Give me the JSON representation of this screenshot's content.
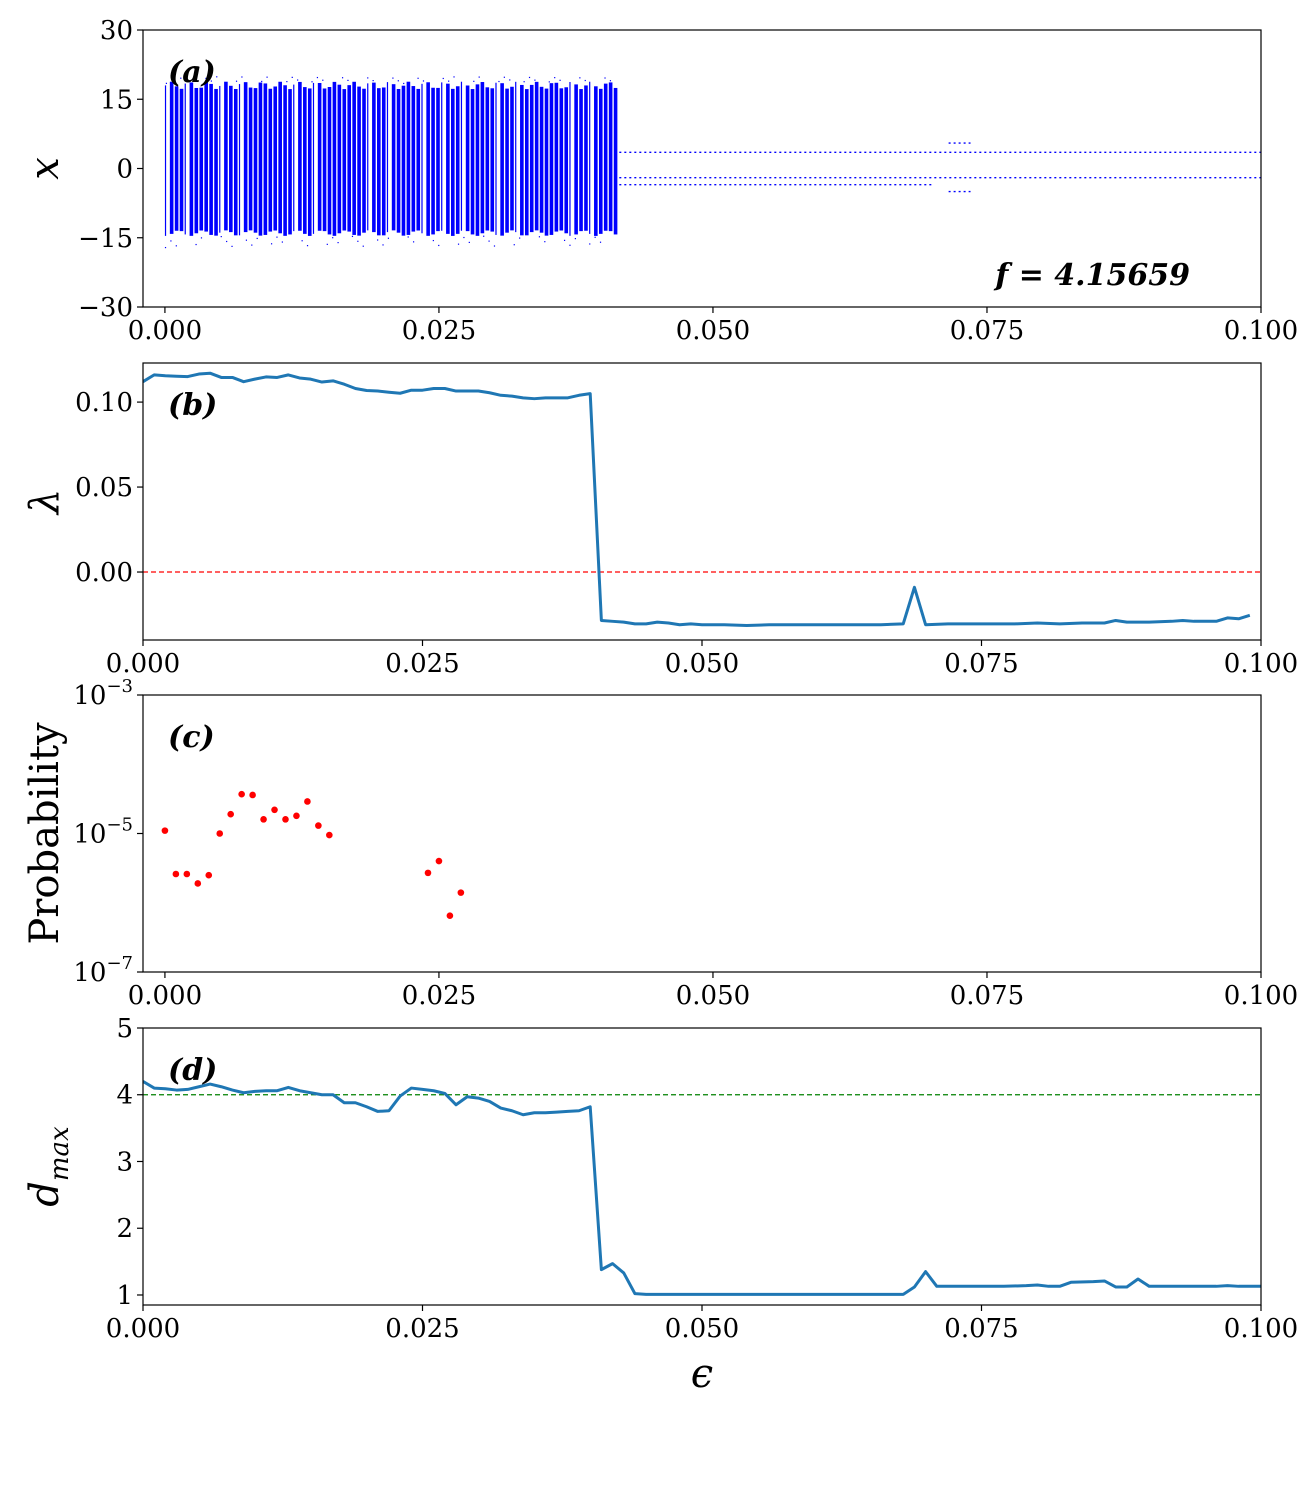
{
  "colors": {
    "scatter": "#0000ff",
    "line": "#1f77b4",
    "zero_ref": "#ff0000",
    "prob_points": "#ff0000",
    "dmax_ref": "#008000"
  },
  "chart_data": [
    {
      "id": "a",
      "type": "scatter",
      "panel_label": "(a)",
      "annotation": "f = 4.15659",
      "ylabel": "x",
      "xlim": [
        -0.002,
        0.1
      ],
      "ylim": [
        -30,
        30
      ],
      "xticks": [
        "0.000",
        "0.025",
        "0.050",
        "0.075",
        "0.100"
      ],
      "xtick_values": [
        0,
        0.025,
        0.05,
        0.075,
        0.1
      ],
      "yticks": [
        "−30",
        "−15",
        "0",
        "15",
        "30"
      ],
      "ytick_values": [
        -30,
        -15,
        0,
        15,
        30
      ],
      "chaotic_band": {
        "x_range": [
          0.0,
          0.041
        ],
        "y_range": [
          -14,
          18
        ],
        "outliers_y": [
          -17,
          20
        ]
      },
      "periodic_branches": [
        {
          "x_range": [
            0.041,
            0.1
          ],
          "y": 3.5
        },
        {
          "x_range": [
            0.041,
            0.1
          ],
          "y": -2.0
        },
        {
          "x_range": [
            0.041,
            0.07
          ],
          "y": -3.5
        },
        {
          "x_range": [
            0.0715,
            0.0735
          ],
          "y": 5.5
        },
        {
          "x_range": [
            0.0715,
            0.0735
          ],
          "y": -5.0
        }
      ]
    },
    {
      "id": "b",
      "type": "line",
      "panel_label": "(b)",
      "ylabel": "λ",
      "xlim": [
        0,
        0.1
      ],
      "ylim": [
        -0.04,
        0.123
      ],
      "xticks": [
        "0.000",
        "0.025",
        "0.050",
        "0.075",
        "0.100"
      ],
      "xtick_values": [
        0,
        0.025,
        0.05,
        0.075,
        0.1
      ],
      "yticks": [
        "0.00",
        "0.05",
        "0.10"
      ],
      "ytick_values": [
        0,
        0.05,
        0.1
      ],
      "reference_line": 0.0,
      "x": [
        0.0,
        0.001,
        0.002,
        0.003,
        0.004,
        0.005,
        0.006,
        0.007,
        0.008,
        0.009,
        0.01,
        0.011,
        0.012,
        0.013,
        0.014,
        0.015,
        0.016,
        0.017,
        0.018,
        0.019,
        0.02,
        0.021,
        0.022,
        0.023,
        0.024,
        0.025,
        0.026,
        0.027,
        0.028,
        0.029,
        0.03,
        0.031,
        0.032,
        0.033,
        0.034,
        0.035,
        0.036,
        0.037,
        0.038,
        0.039,
        0.04,
        0.041,
        0.042,
        0.043,
        0.044,
        0.045,
        0.046,
        0.047,
        0.048,
        0.049,
        0.05,
        0.052,
        0.054,
        0.056,
        0.058,
        0.06,
        0.062,
        0.064,
        0.066,
        0.068,
        0.069,
        0.07,
        0.072,
        0.074,
        0.076,
        0.078,
        0.08,
        0.082,
        0.084,
        0.086,
        0.087,
        0.088,
        0.09,
        0.092,
        0.093,
        0.094,
        0.096,
        0.097,
        0.098,
        0.099
      ],
      "values": [
        0.112,
        0.116,
        0.1155,
        0.1152,
        0.115,
        0.1165,
        0.117,
        0.1145,
        0.1145,
        0.112,
        0.1135,
        0.1148,
        0.1145,
        0.116,
        0.1142,
        0.1135,
        0.1118,
        0.1125,
        0.1105,
        0.108,
        0.1068,
        0.1065,
        0.1058,
        0.1052,
        0.107,
        0.107,
        0.108,
        0.108,
        0.1065,
        0.1065,
        0.1065,
        0.1055,
        0.104,
        0.1035,
        0.1025,
        0.102,
        0.1025,
        0.1025,
        0.1025,
        0.104,
        0.105,
        -0.0285,
        -0.029,
        -0.0295,
        -0.0305,
        -0.0305,
        -0.0295,
        -0.03,
        -0.031,
        -0.0305,
        -0.031,
        -0.031,
        -0.0315,
        -0.031,
        -0.031,
        -0.031,
        -0.031,
        -0.031,
        -0.031,
        -0.0305,
        -0.009,
        -0.031,
        -0.0305,
        -0.0305,
        -0.0305,
        -0.0305,
        -0.03,
        -0.0305,
        -0.03,
        -0.03,
        -0.0285,
        -0.0295,
        -0.0295,
        -0.029,
        -0.0285,
        -0.029,
        -0.029,
        -0.027,
        -0.0275,
        -0.0255
      ]
    },
    {
      "id": "c",
      "type": "scatter",
      "panel_label": "(c)",
      "ylabel": "Probability",
      "yscale": "log",
      "xlim": [
        -0.002,
        0.1
      ],
      "ylim": [
        1e-07,
        0.001
      ],
      "xticks": [
        "0.000",
        "0.025",
        "0.050",
        "0.075",
        "0.100"
      ],
      "xtick_values": [
        0,
        0.025,
        0.05,
        0.075,
        0.1
      ],
      "yticks": [
        "10",
        "10",
        "10"
      ],
      "ytick_exponents": [
        "−7",
        "−5",
        "−3"
      ],
      "ytick_values": [
        1e-07,
        1e-05,
        0.001
      ],
      "x": [
        0.0,
        0.001,
        0.002,
        0.003,
        0.004,
        0.005,
        0.006,
        0.007,
        0.008,
        0.009,
        0.01,
        0.011,
        0.012,
        0.013,
        0.014,
        0.015,
        0.024,
        0.025,
        0.026,
        0.027
      ],
      "values": [
        1.1e-05,
        2.6e-06,
        2.6e-06,
        1.9e-06,
        2.5e-06,
        1e-05,
        1.9e-05,
        3.7e-05,
        3.6e-05,
        1.6e-05,
        2.2e-05,
        1.6e-05,
        1.8e-05,
        2.9e-05,
        1.3e-05,
        9.5e-06,
        2.7e-06,
        4e-06,
        6.5e-07,
        1.4e-06
      ]
    },
    {
      "id": "d",
      "type": "line",
      "panel_label": "(d)",
      "ylabel": "d",
      "ylabel_subscript": "max",
      "xlabel": "ϵ",
      "xlim": [
        0,
        0.1
      ],
      "ylim": [
        0.85,
        5
      ],
      "xticks": [
        "0.000",
        "0.025",
        "0.050",
        "0.075",
        "0.100"
      ],
      "xtick_values": [
        0,
        0.025,
        0.05,
        0.075,
        0.1
      ],
      "yticks": [
        "1",
        "2",
        "3",
        "4",
        "5"
      ],
      "ytick_values": [
        1,
        2,
        3,
        4,
        5
      ],
      "reference_line": 4.0,
      "x": [
        0.0,
        0.001,
        0.002,
        0.003,
        0.004,
        0.005,
        0.006,
        0.007,
        0.008,
        0.009,
        0.01,
        0.011,
        0.012,
        0.013,
        0.014,
        0.015,
        0.016,
        0.017,
        0.018,
        0.019,
        0.02,
        0.021,
        0.022,
        0.023,
        0.024,
        0.025,
        0.026,
        0.027,
        0.028,
        0.029,
        0.03,
        0.031,
        0.032,
        0.033,
        0.034,
        0.035,
        0.036,
        0.037,
        0.038,
        0.039,
        0.04,
        0.041,
        0.042,
        0.043,
        0.044,
        0.045,
        0.046,
        0.048,
        0.05,
        0.055,
        0.06,
        0.065,
        0.068,
        0.069,
        0.07,
        0.071,
        0.073,
        0.075,
        0.077,
        0.079,
        0.08,
        0.081,
        0.082,
        0.083,
        0.085,
        0.086,
        0.087,
        0.088,
        0.089,
        0.09,
        0.092,
        0.094,
        0.095,
        0.096,
        0.097,
        0.098,
        0.1
      ],
      "values": [
        4.2,
        4.1,
        4.09,
        4.07,
        4.08,
        4.12,
        4.16,
        4.12,
        4.07,
        4.03,
        4.05,
        4.06,
        4.06,
        4.11,
        4.06,
        4.03,
        4.0,
        4.0,
        3.88,
        3.88,
        3.82,
        3.75,
        3.76,
        3.98,
        4.1,
        4.08,
        4.06,
        4.02,
        3.85,
        3.97,
        3.95,
        3.9,
        3.8,
        3.76,
        3.7,
        3.73,
        3.73,
        3.74,
        3.75,
        3.76,
        3.82,
        1.38,
        1.47,
        1.33,
        1.02,
        1.01,
        1.01,
        1.01,
        1.01,
        1.01,
        1.01,
        1.01,
        1.01,
        1.12,
        1.35,
        1.13,
        1.13,
        1.13,
        1.13,
        1.14,
        1.15,
        1.13,
        1.13,
        1.19,
        1.2,
        1.21,
        1.12,
        1.12,
        1.24,
        1.13,
        1.13,
        1.13,
        1.13,
        1.13,
        1.14,
        1.13,
        1.13
      ]
    }
  ]
}
